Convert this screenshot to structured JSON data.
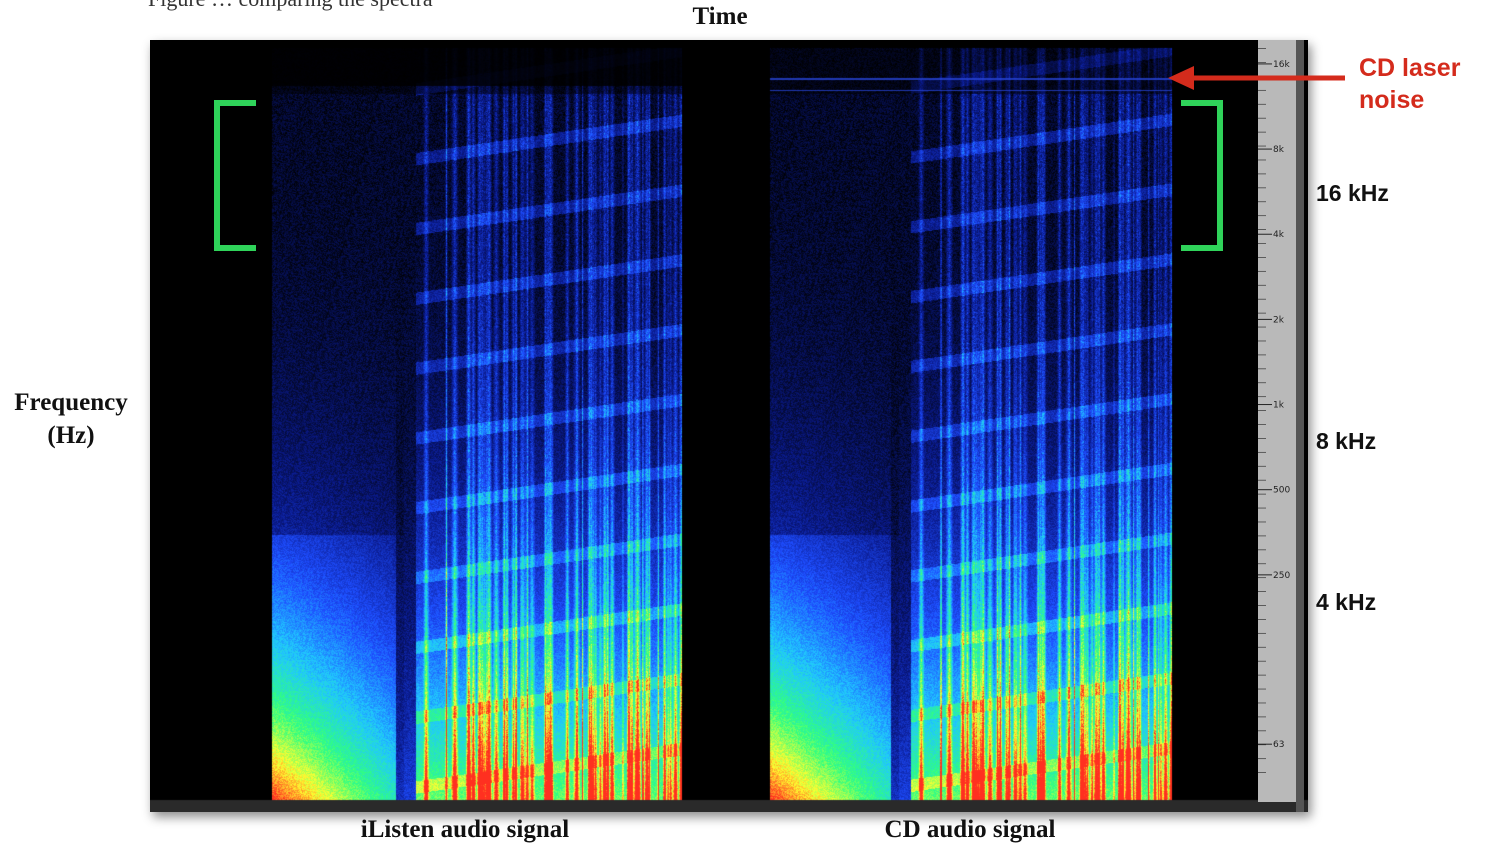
{
  "figure": {
    "caption_fragment": "Figure … comparing the spectra",
    "time_label": "Time",
    "frequency_label_line1": "Frequency",
    "frequency_label_line2": "(Hz)",
    "left_signal_label": "iListen audio signal",
    "right_signal_label": "CD audio signal",
    "annotation_line1": "CD laser",
    "annotation_line2": "noise",
    "annotation_color": "#d42b1c",
    "bracket_color": "#2fd35a"
  },
  "scale": {
    "tick_labels": [
      "16k",
      "8k",
      "4k",
      "2k",
      "1k",
      "500",
      "250",
      "63"
    ],
    "khz_labels": [
      "16 kHz",
      "8 kHz",
      "4 kHz"
    ]
  },
  "chart_data": {
    "type": "heatmap",
    "title": "",
    "xlabel": "Time",
    "ylabel": "Frequency (Hz)",
    "y_scale": "log",
    "y_ticks_hz": [
      63,
      250,
      500,
      1000,
      2000,
      4000,
      8000,
      16000
    ],
    "panels": [
      {
        "name": "iListen audio signal",
        "high_freq_cutoff_hz": 17000,
        "laser_noise": false
      },
      {
        "name": "CD audio signal",
        "high_freq_cutoff_hz": 22000,
        "laser_noise": true,
        "laser_noise_hz": 20500
      }
    ],
    "colormap": [
      "#000000",
      "#0a1a8c",
      "#1e4dff",
      "#20c8ff",
      "#30ff80",
      "#ffff30",
      "#ff3020"
    ]
  }
}
